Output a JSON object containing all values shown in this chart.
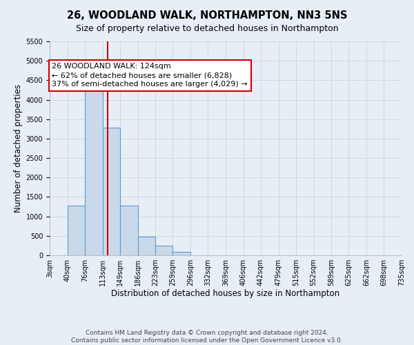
{
  "title": "26, WOODLAND WALK, NORTHAMPTON, NN3 5NS",
  "subtitle": "Size of property relative to detached houses in Northampton",
  "xlabel": "Distribution of detached houses by size in Northampton",
  "ylabel": "Number of detached properties",
  "bin_edges": [
    3,
    40,
    76,
    113,
    149,
    186,
    223,
    259,
    296,
    332,
    369,
    406,
    442,
    479,
    515,
    552,
    589,
    625,
    662,
    698,
    735
  ],
  "bin_counts": [
    0,
    1270,
    4250,
    3280,
    1280,
    475,
    240,
    85,
    0,
    0,
    0,
    0,
    0,
    0,
    0,
    0,
    0,
    0,
    0,
    0
  ],
  "bar_facecolor": "#c9d9ea",
  "bar_edgecolor": "#5b9bd5",
  "property_line_x": 124,
  "property_line_color": "#cc0000",
  "annotation_line1": "26 WOODLAND WALK: 124sqm",
  "annotation_line2": "← 62% of detached houses are smaller (6,828)",
  "annotation_line3": "37% of semi-detached houses are larger (4,029) →",
  "annotation_box_edgecolor": "#cc0000",
  "annotation_box_facecolor": "#ffffff",
  "ylim": [
    0,
    5500
  ],
  "yticks": [
    0,
    500,
    1000,
    1500,
    2000,
    2500,
    3000,
    3500,
    4000,
    4500,
    5000,
    5500
  ],
  "tick_labels": [
    "3sqm",
    "40sqm",
    "76sqm",
    "113sqm",
    "149sqm",
    "186sqm",
    "223sqm",
    "259sqm",
    "296sqm",
    "332sqm",
    "369sqm",
    "406sqm",
    "442sqm",
    "479sqm",
    "515sqm",
    "552sqm",
    "589sqm",
    "625sqm",
    "662sqm",
    "698sqm",
    "735sqm"
  ],
  "grid_color": "#c8d4e3",
  "background_color": "#e8eef5",
  "footer_text": "Contains HM Land Registry data © Crown copyright and database right 2024.\nContains public sector information licensed under the Open Government Licence v3.0.",
  "title_fontsize": 10.5,
  "subtitle_fontsize": 9,
  "axis_label_fontsize": 8.5,
  "tick_fontsize": 7,
  "annotation_fontsize": 8,
  "footer_fontsize": 6.5
}
